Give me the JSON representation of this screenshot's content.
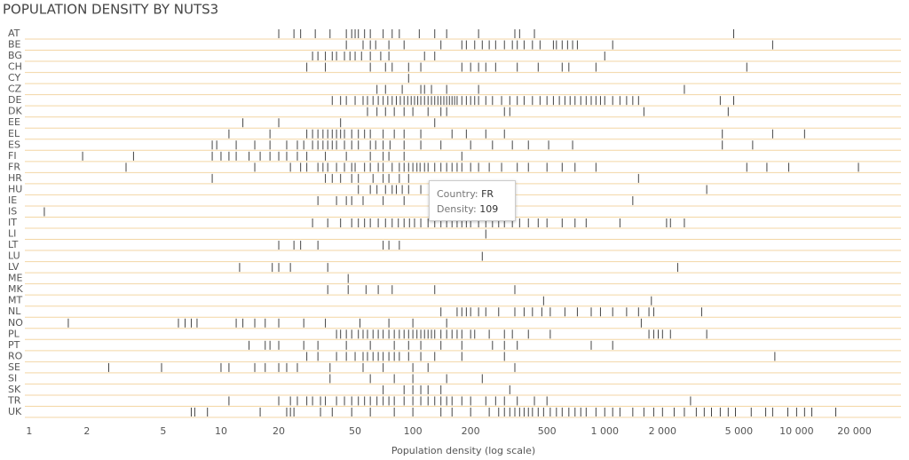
{
  "chart_data": {
    "type": "strip",
    "title": "POPULATION DENSITY BY NUTS3",
    "x_label": "Population density (log scale)",
    "log_x": true,
    "color": "#444444",
    "row_line_color": "#f3d6a4",
    "xlim": [
      0.95,
      35000
    ],
    "xticks": [
      1,
      2,
      5,
      10,
      20,
      50,
      100,
      200,
      500,
      {
        "value": 1000,
        "label": "1 000"
      },
      {
        "value": 2000,
        "label": "2 000"
      },
      {
        "value": 5000,
        "label": "5 000"
      },
      {
        "value": 10000,
        "label": "10 000"
      },
      {
        "value": 20000,
        "label": "20 000"
      }
    ],
    "categories": [
      "AT",
      "BE",
      "BG",
      "CH",
      "CY",
      "CZ",
      "DE",
      "DK",
      "EE",
      "EL",
      "ES",
      "FI",
      "FR",
      "HR",
      "HU",
      "IE",
      "IS",
      "IT",
      "LI",
      "LT",
      "LU",
      "LV",
      "ME",
      "MK",
      "MT",
      "NL",
      "NO",
      "PL",
      "PT",
      "RO",
      "SE",
      "SI",
      "SK",
      "TR",
      "UK"
    ],
    "values": [
      [
        20,
        24,
        26,
        31,
        37,
        45,
        48,
        50,
        52,
        56,
        60,
        70,
        78,
        85,
        108,
        130,
        150,
        220,
        340,
        360,
        430,
        4700
      ],
      [
        45,
        55,
        60,
        64,
        75,
        90,
        140,
        180,
        190,
        210,
        230,
        250,
        270,
        300,
        330,
        350,
        380,
        420,
        460,
        540,
        560,
        600,
        640,
        680,
        720,
        1100,
        7500
      ],
      [
        30,
        32,
        35,
        38,
        40,
        44,
        47,
        50,
        54,
        60,
        68,
        75,
        115,
        130,
        1000
      ],
      [
        28,
        35,
        60,
        72,
        78,
        95,
        110,
        180,
        200,
        220,
        240,
        270,
        350,
        450,
        600,
        650,
        900,
        5500
      ],
      [
        95
      ],
      [
        65,
        72,
        88,
        110,
        115,
        125,
        150,
        220,
        2600
      ],
      [
        38,
        42,
        45,
        50,
        55,
        58,
        62,
        66,
        70,
        74,
        78,
        82,
        86,
        90,
        94,
        98,
        102,
        106,
        110,
        115,
        120,
        125,
        130,
        135,
        140,
        145,
        150,
        155,
        160,
        165,
        170,
        180,
        190,
        200,
        210,
        220,
        240,
        260,
        290,
        320,
        350,
        380,
        420,
        460,
        500,
        540,
        580,
        620,
        660,
        700,
        750,
        800,
        850,
        900,
        950,
        1000,
        1100,
        1200,
        1300,
        1400,
        1500,
        4000,
        4700
      ],
      [
        58,
        65,
        72,
        80,
        90,
        100,
        120,
        140,
        150,
        300,
        320,
        1600,
        4400
      ],
      [
        13,
        20,
        42,
        130
      ],
      [
        11,
        18,
        28,
        30,
        32,
        34,
        36,
        38,
        40,
        42,
        44,
        48,
        52,
        56,
        60,
        70,
        80,
        90,
        110,
        160,
        190,
        240,
        300,
        4100,
        7500,
        11000
      ],
      [
        9,
        9.5,
        12,
        15,
        18,
        22,
        25,
        27,
        30,
        32,
        34,
        36,
        38,
        40,
        44,
        48,
        52,
        60,
        64,
        70,
        76,
        90,
        110,
        140,
        200,
        260,
        330,
        400,
        510,
        680,
        4100,
        5900
      ],
      [
        1.9,
        3.5,
        9,
        10,
        11,
        12,
        14,
        16,
        18,
        20,
        22,
        25,
        28,
        35,
        45,
        60,
        70,
        75,
        90,
        180
      ],
      [
        3.2,
        15,
        23,
        26,
        28,
        32,
        34,
        36,
        40,
        44,
        48,
        50,
        56,
        60,
        66,
        70,
        78,
        85,
        90,
        95,
        100,
        105,
        109,
        115,
        120,
        130,
        140,
        150,
        160,
        170,
        180,
        200,
        220,
        250,
        290,
        350,
        400,
        500,
        600,
        700,
        900,
        5500,
        7000,
        9100,
        21000
      ],
      [
        9,
        35,
        38,
        42,
        48,
        52,
        62,
        70,
        75,
        85,
        95,
        1500
      ],
      [
        52,
        60,
        65,
        72,
        78,
        82,
        88,
        95,
        110,
        125,
        3400
      ],
      [
        32,
        40,
        45,
        48,
        55,
        70,
        90,
        1400
      ],
      [
        1.2
      ],
      [
        30,
        36,
        42,
        48,
        52,
        56,
        60,
        66,
        72,
        78,
        84,
        90,
        96,
        102,
        110,
        120,
        130,
        140,
        150,
        160,
        170,
        180,
        190,
        200,
        220,
        240,
        260,
        280,
        300,
        330,
        360,
        400,
        450,
        500,
        600,
        700,
        800,
        1200,
        2100,
        2200,
        2600
      ],
      [
        240
      ],
      [
        20,
        24,
        26,
        32,
        70,
        75,
        85
      ],
      [
        230
      ],
      [
        12.5,
        18.5,
        20,
        23,
        36,
        2400
      ],
      [
        46
      ],
      [
        36,
        46,
        57,
        66,
        78,
        130,
        340
      ],
      [
        480,
        1750
      ],
      [
        140,
        170,
        180,
        190,
        200,
        220,
        240,
        280,
        340,
        380,
        420,
        470,
        520,
        620,
        720,
        850,
        950,
        1100,
        1300,
        1500,
        1700,
        1800,
        3200
      ],
      [
        1.6,
        6,
        6.5,
        7,
        7.5,
        12,
        13,
        15,
        17,
        20,
        27,
        35,
        53,
        75,
        100,
        150,
        1550
      ],
      [
        40,
        42,
        45,
        48,
        52,
        55,
        58,
        62,
        66,
        70,
        75,
        80,
        85,
        90,
        95,
        100,
        105,
        110,
        115,
        120,
        125,
        130,
        140,
        150,
        160,
        170,
        180,
        200,
        210,
        250,
        300,
        330,
        400,
        520,
        1700,
        1800,
        1900,
        2000,
        2200,
        3400
      ],
      [
        14,
        17,
        18,
        20,
        27,
        32,
        45,
        60,
        80,
        95,
        110,
        140,
        180,
        260,
        300,
        350,
        850,
        1100
      ],
      [
        28,
        32,
        40,
        45,
        50,
        55,
        58,
        62,
        66,
        70,
        75,
        80,
        85,
        95,
        110,
        130,
        180,
        300,
        7700
      ],
      [
        2.6,
        4.9,
        10,
        11,
        15,
        17,
        20,
        22,
        25,
        37,
        55,
        70,
        100,
        120,
        340
      ],
      [
        37,
        60,
        80,
        100,
        150,
        230
      ],
      [
        70,
        90,
        100,
        110,
        120,
        140,
        320
      ],
      [
        11,
        20,
        23,
        25,
        28,
        30,
        33,
        35,
        40,
        44,
        48,
        52,
        56,
        60,
        65,
        70,
        75,
        80,
        90,
        100,
        110,
        120,
        130,
        140,
        150,
        160,
        180,
        200,
        240,
        270,
        300,
        350,
        430,
        500,
        2800
      ],
      [
        7,
        7.3,
        8.5,
        16,
        22,
        23,
        24,
        33,
        38,
        48,
        60,
        80,
        100,
        140,
        160,
        200,
        250,
        280,
        300,
        320,
        340,
        360,
        380,
        400,
        420,
        450,
        480,
        520,
        560,
        600,
        650,
        700,
        750,
        800,
        900,
        1000,
        1100,
        1200,
        1400,
        1600,
        1800,
        2000,
        2300,
        2600,
        3000,
        3300,
        3600,
        4000,
        4400,
        4800,
        5800,
        6900,
        7500,
        9000,
        10000,
        11000,
        12000,
        16000
      ]
    ],
    "tooltip": {
      "country_label": "Country:",
      "country": "FR",
      "density_label": "Density:",
      "density": 109
    }
  }
}
